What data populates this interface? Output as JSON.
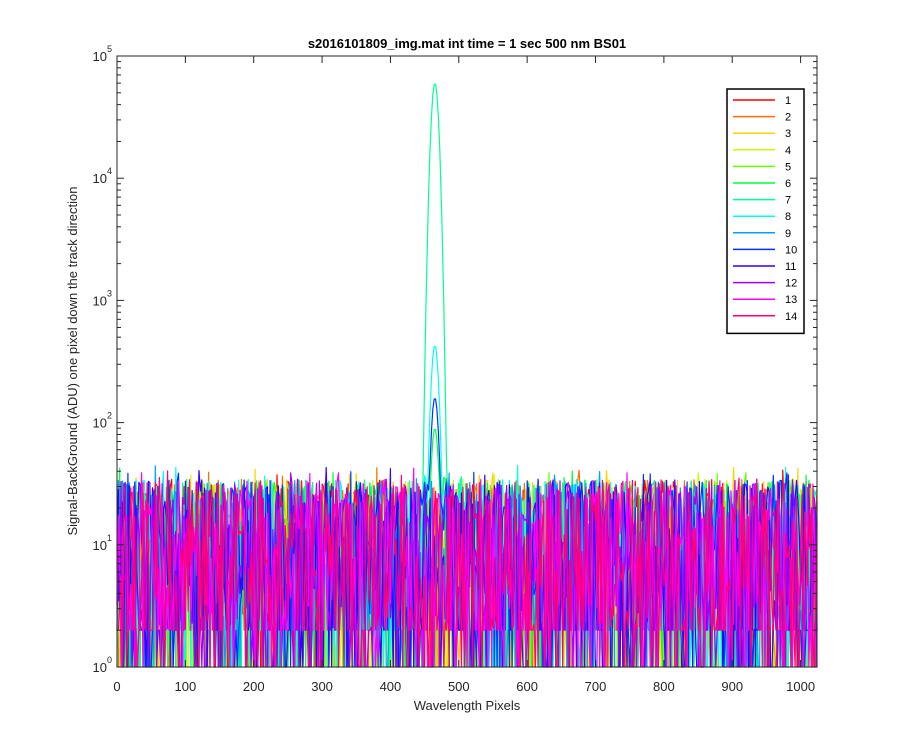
{
  "chart_data": {
    "type": "line",
    "title": "s2016101809_img.mat int time = 1 sec  500 nm BS01",
    "xlabel": "Wavelength Pixels",
    "ylabel": "Signal-BackGround (ADU) one pixel down the track direction",
    "xlim": [
      0,
      1024
    ],
    "ylim": [
      1,
      100000
    ],
    "yscale": "log",
    "x_ticks": [
      0,
      100,
      200,
      300,
      400,
      500,
      600,
      700,
      800,
      900,
      1000
    ],
    "x_tick_labels": [
      "0",
      "100",
      "200",
      "300",
      "400",
      "500",
      "600",
      "700",
      "800",
      "900",
      "1000"
    ],
    "y_ticks": [
      1,
      10,
      100,
      1000,
      10000,
      100000
    ],
    "y_tick_bases": [
      "10",
      "10",
      "10",
      "10",
      "10",
      "10"
    ],
    "y_tick_exponents": [
      "0",
      "1",
      "2",
      "3",
      "4",
      "5"
    ],
    "grid": false,
    "legend_position": "top-right",
    "noise_floor_range": [
      1,
      45
    ],
    "peak": {
      "x": 465,
      "series_peaks": [
        {
          "name": "7",
          "value": 60000
        },
        {
          "name": "8",
          "value": 430
        },
        {
          "name": "10",
          "value": 160
        },
        {
          "name": "6",
          "value": 90
        }
      ]
    },
    "series": [
      {
        "name": "1",
        "color": "#ff0000"
      },
      {
        "name": "2",
        "color": "#ff6e00"
      },
      {
        "name": "3",
        "color": "#ffd200"
      },
      {
        "name": "4",
        "color": "#c8ff00"
      },
      {
        "name": "5",
        "color": "#64ff00"
      },
      {
        "name": "6",
        "color": "#00ff3c"
      },
      {
        "name": "7",
        "color": "#00ff96"
      },
      {
        "name": "8",
        "color": "#00fff0"
      },
      {
        "name": "9",
        "color": "#00a0ff"
      },
      {
        "name": "10",
        "color": "#0032ff"
      },
      {
        "name": "11",
        "color": "#3200ff"
      },
      {
        "name": "12",
        "color": "#a000ff"
      },
      {
        "name": "13",
        "color": "#ff00f0"
      },
      {
        "name": "14",
        "color": "#ff0078"
      }
    ]
  }
}
